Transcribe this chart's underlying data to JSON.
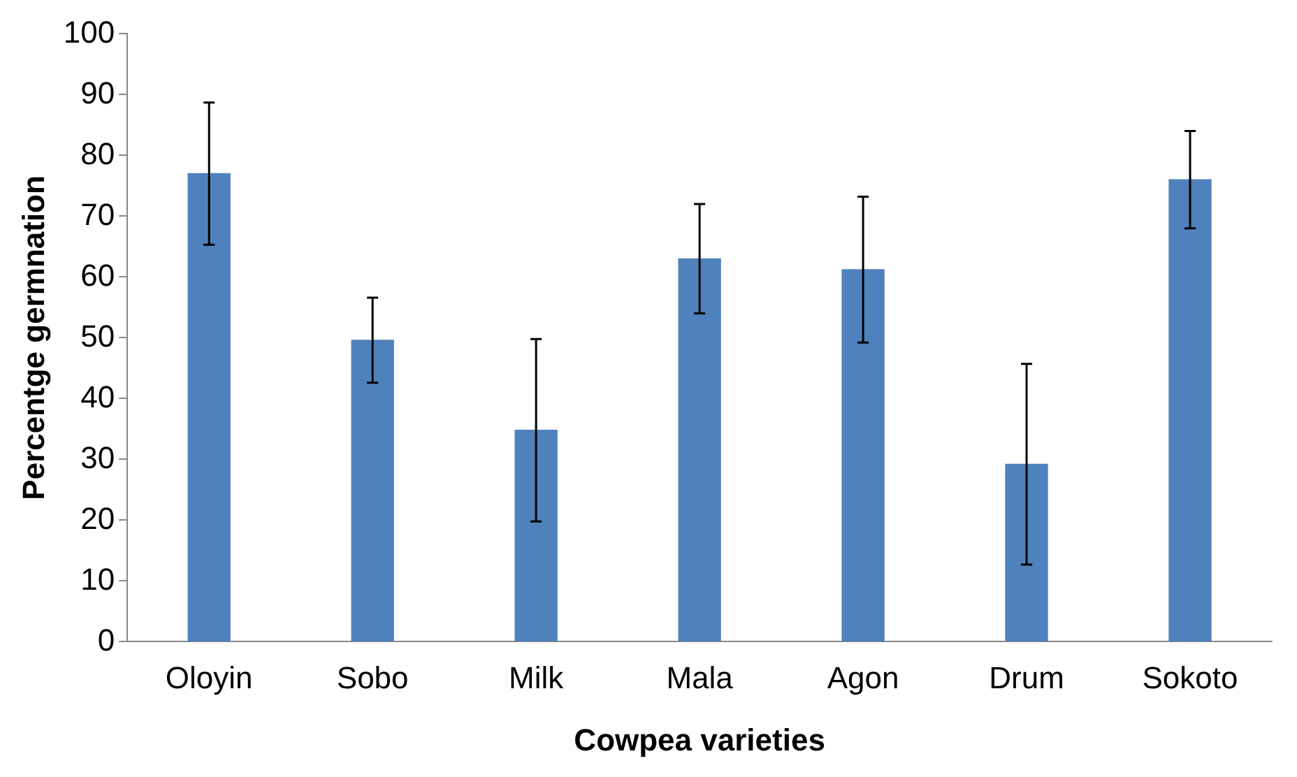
{
  "chart_data": {
    "type": "bar",
    "xlabel": "Cowpea varieties",
    "ylabel": "Percentge germnation",
    "categories": [
      "Oloyin",
      "Sobo",
      "Milk",
      "Mala",
      "Agon",
      "Drum",
      "Sokoto"
    ],
    "values": [
      77,
      49.6,
      34.8,
      63,
      61.2,
      29.2,
      76
    ],
    "errors": [
      11.7,
      7,
      15,
      9,
      12,
      16.5,
      8
    ],
    "color": "#4f81bd",
    "ylim": [
      0,
      100
    ],
    "yticks": [
      0,
      10,
      20,
      30,
      40,
      50,
      60,
      70,
      80,
      90,
      100
    ],
    "grid": false,
    "legend": false
  }
}
